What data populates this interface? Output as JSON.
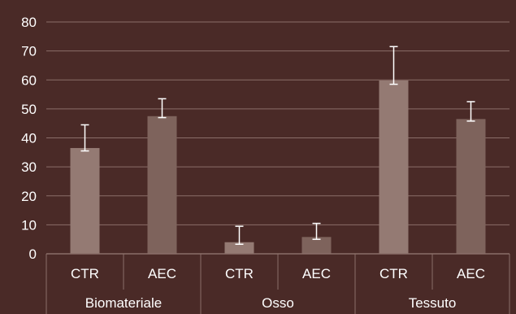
{
  "chart_data": {
    "type": "bar",
    "ylim": [
      0,
      80
    ],
    "y_ticks": [
      0,
      10,
      20,
      30,
      40,
      50,
      60,
      70,
      80
    ],
    "grid": true,
    "groups": [
      "Biomateriale",
      "Osso",
      "Tessuto"
    ],
    "categories": [
      "CTR",
      "AEC",
      "CTR",
      "AEC",
      "CTR",
      "AEC"
    ],
    "values": [
      36.5,
      47.5,
      4.0,
      5.8,
      59.8,
      46.5
    ],
    "error_upper": [
      44.5,
      53.5,
      9.5,
      10.5,
      71.5,
      52.5
    ],
    "error_lower": [
      35.5,
      47.0,
      3.3,
      5.0,
      58.5,
      45.8
    ],
    "legend": "none",
    "colors": {
      "background": "#4a2a27",
      "gridline": "#8a6e69",
      "bar_ctr": "#947a73",
      "bar_aec": "#7e635c",
      "error_bar": "#ffffff",
      "text": "#ffffff"
    }
  }
}
